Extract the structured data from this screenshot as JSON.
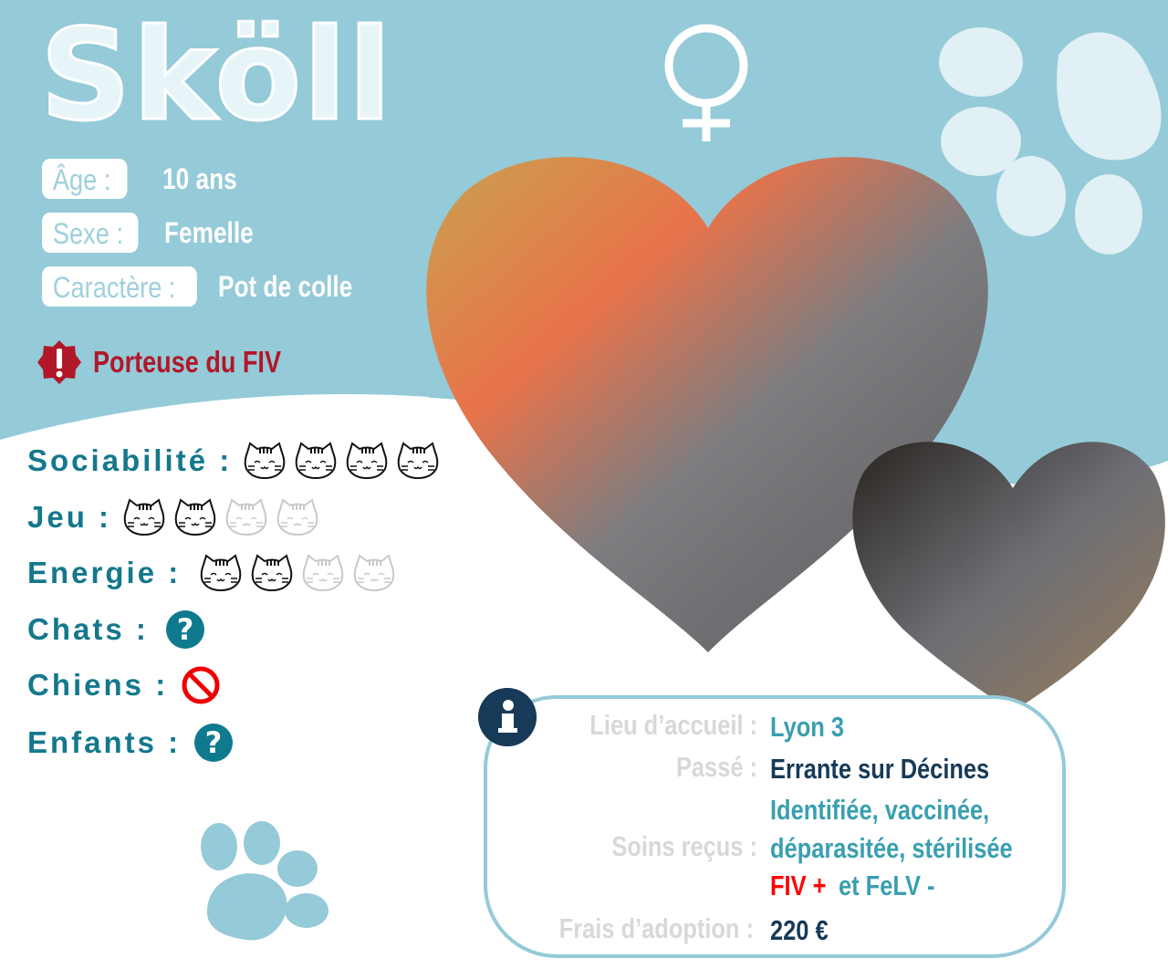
{
  "name": "Sköll",
  "gender_icon": "female-symbol-icon",
  "profile": [
    {
      "label": "Âge :",
      "value": "10 ans"
    },
    {
      "label": "Sexe :",
      "value": "Femelle"
    },
    {
      "label": "Caractère :",
      "value": "Pot de colle"
    }
  ],
  "warning": {
    "icon": "exclamation-badge-icon",
    "text": "Porteuse du FIV"
  },
  "ratings": [
    {
      "label": "Sociabilité :",
      "score": 4,
      "max": 4
    },
    {
      "label": "Jeu :",
      "score": 2,
      "max": 4
    },
    {
      "label": "Energie :",
      "score": 2,
      "max": 4
    }
  ],
  "compat": [
    {
      "label": "Chats :",
      "icon": "question-icon"
    },
    {
      "label": "Chiens :",
      "icon": "prohibited-icon"
    },
    {
      "label": "Enfants :",
      "icon": "question-icon"
    }
  ],
  "info": {
    "lieu_label": "Lieu d’accueil :",
    "lieu_value": "Lyon 3",
    "passe_label": "Passé :",
    "passe_value": "Errante sur Décines",
    "soins_label": "Soins reçus :",
    "soins_line1": "Identifiée, vaccinée,",
    "soins_line2": "déparasitée, stérilisée",
    "fiv": "FIV +",
    "felv": "et FeLV -",
    "frais_label": "Frais d’adoption :",
    "frais_value": "220 €"
  },
  "colors": {
    "background": "#95cad8",
    "label_teal": "#14788c",
    "value_teal": "#3a9fb0",
    "navy": "#173a58",
    "warning_red": "#b0182a"
  }
}
